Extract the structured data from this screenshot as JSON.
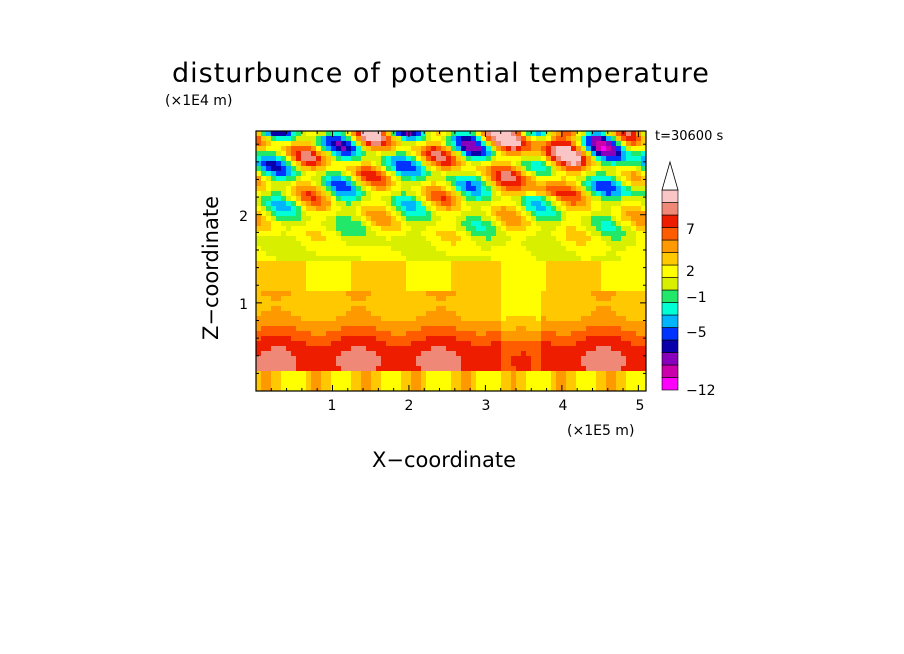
{
  "chart_data": {
    "type": "heatmap",
    "title": "disturbunce of potential temperature",
    "time_label": "t=30600 s",
    "xlabel": "X−coordinate",
    "ylabel": "Z−coordinate",
    "x_unit": "(×1E5 m)",
    "y_unit": "(×1E4 m)",
    "xlim": [
      0,
      5.1
    ],
    "ylim": [
      0,
      2.95
    ],
    "x_ticks": [
      "1",
      "2",
      "3",
      "4",
      "5"
    ],
    "y_ticks": [
      "1",
      "2"
    ],
    "colorbar": {
      "labels": [
        "7",
        "2",
        "−1",
        "−5",
        "−12"
      ],
      "colors": [
        "#ff00ff",
        "#cc00aa",
        "#8800bb",
        "#0a00aa",
        "#0033ff",
        "#00b5ff",
        "#00ffd5",
        "#22e86a",
        "#d8f000",
        "#ffff00",
        "#ffc800",
        "#ff9900",
        "#ff5c00",
        "#ee1d00",
        "#f08878",
        "#f9c5c5"
      ],
      "extend": "max"
    }
  }
}
